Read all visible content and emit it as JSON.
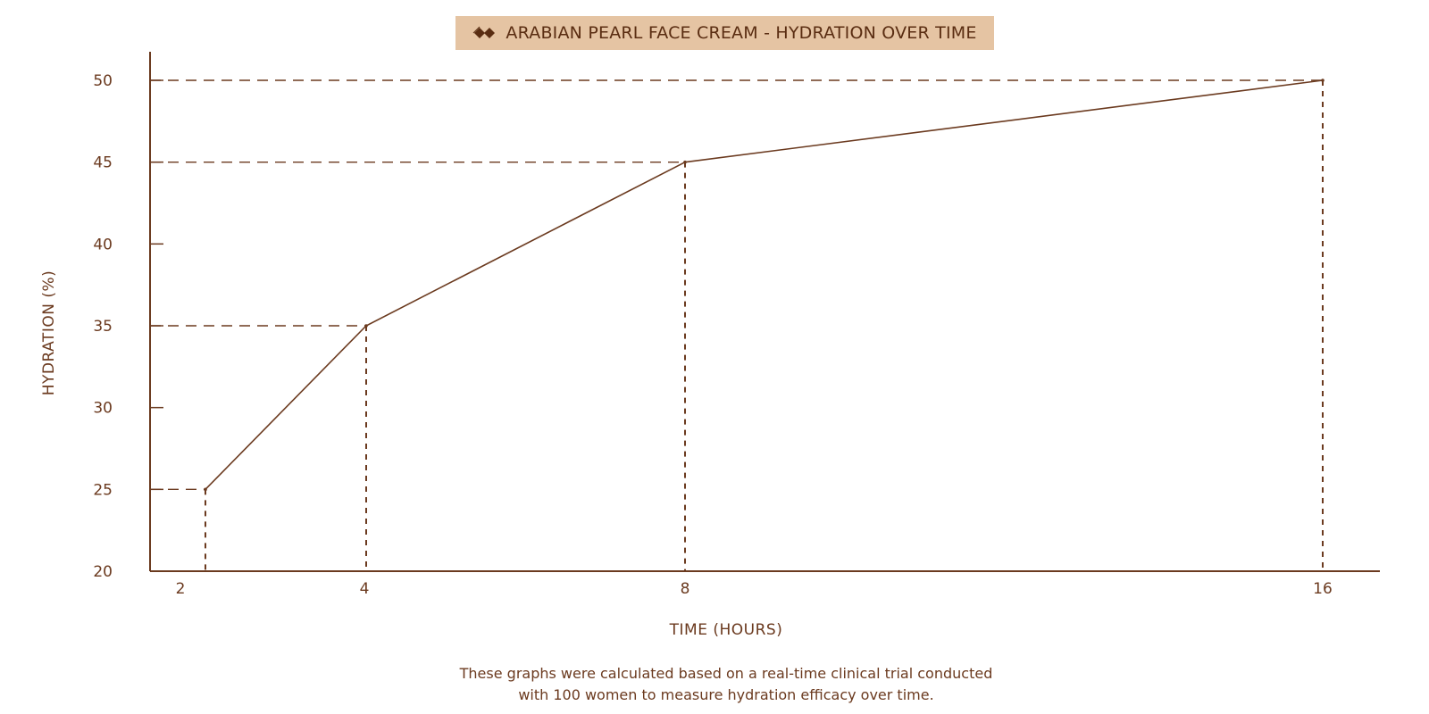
{
  "chart_data": {
    "type": "line",
    "title": "ARABIAN PEARL FACE CREAM - HYDRATION OVER TIME",
    "xlabel": "TIME (HOURS)",
    "ylabel": "HYDRATION (%)",
    "x_ticks": [
      "2",
      "4",
      "8",
      "16"
    ],
    "y_ticks": [
      "20",
      "25",
      "30",
      "35",
      "40",
      "45",
      "50"
    ],
    "ylim": [
      20,
      50
    ],
    "grid": false,
    "series": [
      {
        "points": [
          {
            "x": 2,
            "y": 25
          },
          {
            "x": 4,
            "y": 35
          },
          {
            "x": 8,
            "y": 45
          },
          {
            "x": 16,
            "y": 50
          }
        ]
      }
    ],
    "guides": "dashed",
    "color": "#6b3a1f"
  },
  "caption": {
    "line1": "These graphs were calculated based on a real-time clinical trial conducted",
    "line2": "with 100 women to measure hydration efficacy over time."
  },
  "logo_icon": "double-diamond-icon",
  "colors": {
    "accent": "#6b3a1f",
    "badge": "#e5c4a3"
  }
}
